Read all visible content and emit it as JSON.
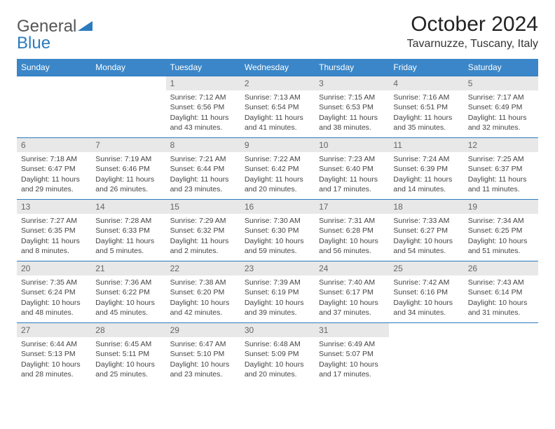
{
  "brand": {
    "part1": "General",
    "part2": "Blue"
  },
  "title": "October 2024",
  "location": "Tavarnuzze, Tuscany, Italy",
  "colors": {
    "header_bg": "#3a86c8",
    "border": "#2b7bbf",
    "daynum_bg": "#e8e8e8",
    "text": "#444444"
  },
  "calendar": {
    "day_headers": [
      "Sunday",
      "Monday",
      "Tuesday",
      "Wednesday",
      "Thursday",
      "Friday",
      "Saturday"
    ],
    "weeks": [
      [
        null,
        null,
        {
          "n": "1",
          "sr": "Sunrise: 7:12 AM",
          "ss": "Sunset: 6:56 PM",
          "dl": "Daylight: 11 hours and 43 minutes."
        },
        {
          "n": "2",
          "sr": "Sunrise: 7:13 AM",
          "ss": "Sunset: 6:54 PM",
          "dl": "Daylight: 11 hours and 41 minutes."
        },
        {
          "n": "3",
          "sr": "Sunrise: 7:15 AM",
          "ss": "Sunset: 6:53 PM",
          "dl": "Daylight: 11 hours and 38 minutes."
        },
        {
          "n": "4",
          "sr": "Sunrise: 7:16 AM",
          "ss": "Sunset: 6:51 PM",
          "dl": "Daylight: 11 hours and 35 minutes."
        },
        {
          "n": "5",
          "sr": "Sunrise: 7:17 AM",
          "ss": "Sunset: 6:49 PM",
          "dl": "Daylight: 11 hours and 32 minutes."
        }
      ],
      [
        {
          "n": "6",
          "sr": "Sunrise: 7:18 AM",
          "ss": "Sunset: 6:47 PM",
          "dl": "Daylight: 11 hours and 29 minutes."
        },
        {
          "n": "7",
          "sr": "Sunrise: 7:19 AM",
          "ss": "Sunset: 6:46 PM",
          "dl": "Daylight: 11 hours and 26 minutes."
        },
        {
          "n": "8",
          "sr": "Sunrise: 7:21 AM",
          "ss": "Sunset: 6:44 PM",
          "dl": "Daylight: 11 hours and 23 minutes."
        },
        {
          "n": "9",
          "sr": "Sunrise: 7:22 AM",
          "ss": "Sunset: 6:42 PM",
          "dl": "Daylight: 11 hours and 20 minutes."
        },
        {
          "n": "10",
          "sr": "Sunrise: 7:23 AM",
          "ss": "Sunset: 6:40 PM",
          "dl": "Daylight: 11 hours and 17 minutes."
        },
        {
          "n": "11",
          "sr": "Sunrise: 7:24 AM",
          "ss": "Sunset: 6:39 PM",
          "dl": "Daylight: 11 hours and 14 minutes."
        },
        {
          "n": "12",
          "sr": "Sunrise: 7:25 AM",
          "ss": "Sunset: 6:37 PM",
          "dl": "Daylight: 11 hours and 11 minutes."
        }
      ],
      [
        {
          "n": "13",
          "sr": "Sunrise: 7:27 AM",
          "ss": "Sunset: 6:35 PM",
          "dl": "Daylight: 11 hours and 8 minutes."
        },
        {
          "n": "14",
          "sr": "Sunrise: 7:28 AM",
          "ss": "Sunset: 6:33 PM",
          "dl": "Daylight: 11 hours and 5 minutes."
        },
        {
          "n": "15",
          "sr": "Sunrise: 7:29 AM",
          "ss": "Sunset: 6:32 PM",
          "dl": "Daylight: 11 hours and 2 minutes."
        },
        {
          "n": "16",
          "sr": "Sunrise: 7:30 AM",
          "ss": "Sunset: 6:30 PM",
          "dl": "Daylight: 10 hours and 59 minutes."
        },
        {
          "n": "17",
          "sr": "Sunrise: 7:31 AM",
          "ss": "Sunset: 6:28 PM",
          "dl": "Daylight: 10 hours and 56 minutes."
        },
        {
          "n": "18",
          "sr": "Sunrise: 7:33 AM",
          "ss": "Sunset: 6:27 PM",
          "dl": "Daylight: 10 hours and 54 minutes."
        },
        {
          "n": "19",
          "sr": "Sunrise: 7:34 AM",
          "ss": "Sunset: 6:25 PM",
          "dl": "Daylight: 10 hours and 51 minutes."
        }
      ],
      [
        {
          "n": "20",
          "sr": "Sunrise: 7:35 AM",
          "ss": "Sunset: 6:24 PM",
          "dl": "Daylight: 10 hours and 48 minutes."
        },
        {
          "n": "21",
          "sr": "Sunrise: 7:36 AM",
          "ss": "Sunset: 6:22 PM",
          "dl": "Daylight: 10 hours and 45 minutes."
        },
        {
          "n": "22",
          "sr": "Sunrise: 7:38 AM",
          "ss": "Sunset: 6:20 PM",
          "dl": "Daylight: 10 hours and 42 minutes."
        },
        {
          "n": "23",
          "sr": "Sunrise: 7:39 AM",
          "ss": "Sunset: 6:19 PM",
          "dl": "Daylight: 10 hours and 39 minutes."
        },
        {
          "n": "24",
          "sr": "Sunrise: 7:40 AM",
          "ss": "Sunset: 6:17 PM",
          "dl": "Daylight: 10 hours and 37 minutes."
        },
        {
          "n": "25",
          "sr": "Sunrise: 7:42 AM",
          "ss": "Sunset: 6:16 PM",
          "dl": "Daylight: 10 hours and 34 minutes."
        },
        {
          "n": "26",
          "sr": "Sunrise: 7:43 AM",
          "ss": "Sunset: 6:14 PM",
          "dl": "Daylight: 10 hours and 31 minutes."
        }
      ],
      [
        {
          "n": "27",
          "sr": "Sunrise: 6:44 AM",
          "ss": "Sunset: 5:13 PM",
          "dl": "Daylight: 10 hours and 28 minutes."
        },
        {
          "n": "28",
          "sr": "Sunrise: 6:45 AM",
          "ss": "Sunset: 5:11 PM",
          "dl": "Daylight: 10 hours and 25 minutes."
        },
        {
          "n": "29",
          "sr": "Sunrise: 6:47 AM",
          "ss": "Sunset: 5:10 PM",
          "dl": "Daylight: 10 hours and 23 minutes."
        },
        {
          "n": "30",
          "sr": "Sunrise: 6:48 AM",
          "ss": "Sunset: 5:09 PM",
          "dl": "Daylight: 10 hours and 20 minutes."
        },
        {
          "n": "31",
          "sr": "Sunrise: 6:49 AM",
          "ss": "Sunset: 5:07 PM",
          "dl": "Daylight: 10 hours and 17 minutes."
        },
        null,
        null
      ]
    ]
  }
}
